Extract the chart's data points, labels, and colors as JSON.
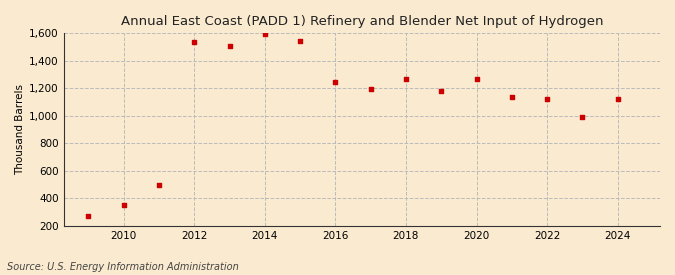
{
  "title": "Annual East Coast (PADD 1) Refinery and Blender Net Input of Hydrogen",
  "ylabel": "Thousand Barrels",
  "source": "Source: U.S. Energy Information Administration",
  "background_color": "#faebd0",
  "plot_bg_color": "#faebd0",
  "marker_color": "#cc0000",
  "grid_color": "#bbbbbb",
  "years": [
    2009,
    2010,
    2011,
    2012,
    2013,
    2014,
    2015,
    2016,
    2017,
    2018,
    2019,
    2020,
    2021,
    2022,
    2023,
    2024
  ],
  "values": [
    275,
    350,
    500,
    1540,
    1510,
    1595,
    1545,
    1245,
    1195,
    1265,
    1180,
    1270,
    1140,
    1120,
    990,
    1120
  ],
  "ylim": [
    200,
    1600
  ],
  "yticks": [
    200,
    400,
    600,
    800,
    1000,
    1200,
    1400,
    1600
  ],
  "xticks": [
    2010,
    2012,
    2014,
    2016,
    2018,
    2020,
    2022,
    2024
  ],
  "xlim": [
    2008.3,
    2025.2
  ],
  "title_fontsize": 9.5,
  "label_fontsize": 7.5,
  "tick_fontsize": 7.5,
  "source_fontsize": 7
}
